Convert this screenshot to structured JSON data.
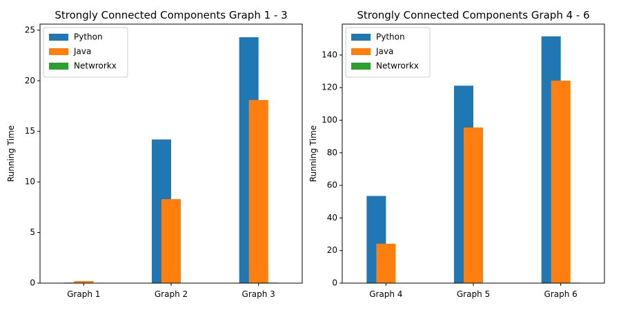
{
  "chart_data": [
    {
      "type": "bar",
      "title": "Strongly Connected Components Graph 1 - 3",
      "xlabel": "",
      "ylabel": "Running Time",
      "categories": [
        "Graph 1",
        "Graph 2",
        "Graph 3"
      ],
      "ylim": [
        0,
        25.6
      ],
      "yticks": [
        0,
        5,
        10,
        15,
        20,
        25
      ],
      "grid": false,
      "legend_position": "top-left",
      "series": [
        {
          "name": "Python",
          "color": "#1f77b4",
          "values": [
            0.05,
            14.2,
            24.3
          ]
        },
        {
          "name": "Java",
          "color": "#ff7f0e",
          "values": [
            0.2,
            8.3,
            18.1
          ]
        },
        {
          "name": "Netwrorkx",
          "color": "#2ca02c",
          "values": [
            0.01,
            0.03,
            0.05
          ]
        }
      ]
    },
    {
      "type": "bar",
      "title": "Strongly Connected Components Graph 4 - 6",
      "xlabel": "",
      "ylabel": "Running Time",
      "categories": [
        "Graph 4",
        "Graph 5",
        "Graph 6"
      ],
      "ylim": [
        0,
        159
      ],
      "yticks": [
        0,
        20,
        40,
        60,
        80,
        100,
        120,
        140
      ],
      "grid": false,
      "legend_position": "top-left",
      "series": [
        {
          "name": "Python",
          "color": "#1f77b4",
          "values": [
            53.5,
            121.2,
            151.5
          ]
        },
        {
          "name": "Java",
          "color": "#ff7f0e",
          "values": [
            24.2,
            95.5,
            124.3
          ]
        },
        {
          "name": "Netwrorkx",
          "color": "#2ca02c",
          "values": [
            0.1,
            0.2,
            0.3
          ]
        }
      ]
    }
  ]
}
